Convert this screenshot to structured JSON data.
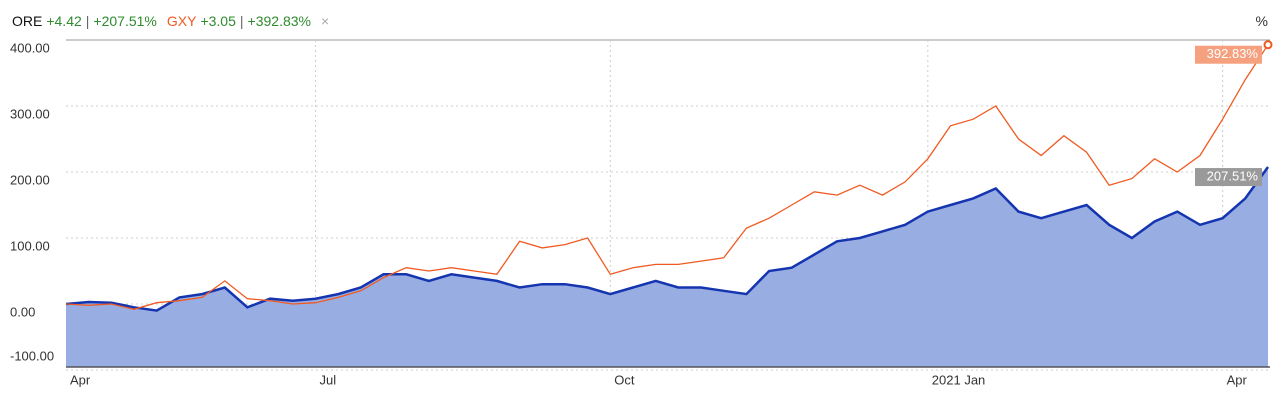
{
  "chart_data": {
    "type": "area-line",
    "y_label": "%",
    "categories": [
      "Apr",
      null,
      null,
      null,
      null,
      null,
      null,
      null,
      null,
      null,
      null,
      "Jul",
      null,
      null,
      null,
      null,
      null,
      null,
      null,
      null,
      null,
      null,
      null,
      null,
      "Oct",
      null,
      null,
      null,
      null,
      null,
      null,
      null,
      null,
      null,
      null,
      null,
      null,
      null,
      "2021 Jan",
      null,
      null,
      null,
      null,
      null,
      null,
      null,
      null,
      null,
      null,
      null,
      null,
      "Apr",
      null,
      null
    ],
    "series": [
      {
        "name": "ORE",
        "change": "+4.42",
        "change_pct": "+207.51%",
        "color": "#1535b0",
        "fill": "#98ade2",
        "area": true,
        "values": [
          0,
          3,
          2,
          -5,
          -10,
          10,
          15,
          25,
          -5,
          8,
          5,
          8,
          15,
          25,
          45,
          45,
          35,
          45,
          40,
          35,
          25,
          30,
          30,
          25,
          15,
          25,
          35,
          25,
          25,
          20,
          15,
          50,
          55,
          75,
          95,
          100,
          110,
          120,
          140,
          150,
          160,
          175,
          140,
          130,
          140,
          150,
          120,
          100,
          125,
          140,
          120,
          130,
          160,
          207.51
        ],
        "value_labels": [
          null,
          null,
          null,
          null,
          null,
          null,
          null,
          null,
          null,
          null,
          null,
          null,
          null,
          null,
          null,
          null,
          null,
          null,
          null,
          null,
          null,
          null,
          null,
          null,
          null,
          null,
          null,
          null,
          null,
          null,
          null,
          null,
          null,
          null,
          null,
          null,
          null,
          null,
          null,
          null,
          null,
          null,
          null,
          null,
          null,
          null,
          null,
          null,
          null,
          null,
          null,
          null,
          null,
          "207.51%"
        ],
        "label_color": "#9a9a9a"
      },
      {
        "name": "GXY",
        "change": "+3.05",
        "change_pct": "+392.83%",
        "color": "#f05a22",
        "area": false,
        "values": [
          0,
          -2,
          0,
          -8,
          2,
          5,
          10,
          35,
          8,
          5,
          0,
          2,
          10,
          20,
          40,
          55,
          50,
          55,
          50,
          45,
          95,
          85,
          90,
          100,
          45,
          55,
          60,
          60,
          65,
          70,
          115,
          130,
          150,
          170,
          165,
          180,
          165,
          185,
          220,
          270,
          280,
          300,
          250,
          225,
          255,
          230,
          180,
          190,
          220,
          200,
          225,
          280,
          340,
          392.83
        ],
        "value_labels": [
          null,
          null,
          null,
          null,
          null,
          null,
          null,
          null,
          null,
          null,
          null,
          null,
          null,
          null,
          null,
          null,
          null,
          null,
          null,
          null,
          null,
          null,
          null,
          null,
          null,
          null,
          null,
          null,
          null,
          null,
          null,
          null,
          null,
          null,
          null,
          null,
          null,
          null,
          null,
          null,
          null,
          null,
          null,
          null,
          null,
          null,
          null,
          null,
          null,
          null,
          null,
          null,
          null,
          "392.83%"
        ],
        "label_color": "#f5a07f"
      }
    ],
    "ylim": [
      -100,
      400
    ],
    "yticks": [
      {
        "value": -100,
        "label": "-100.00"
      },
      {
        "value": 0,
        "label": "0.00"
      },
      {
        "value": 100,
        "label": "100.00"
      },
      {
        "value": 200,
        "label": "200.00"
      },
      {
        "value": 300,
        "label": "300.00"
      },
      {
        "value": 400,
        "label": "400.00"
      }
    ],
    "grid": true,
    "change_color": "#2e8b2e"
  }
}
